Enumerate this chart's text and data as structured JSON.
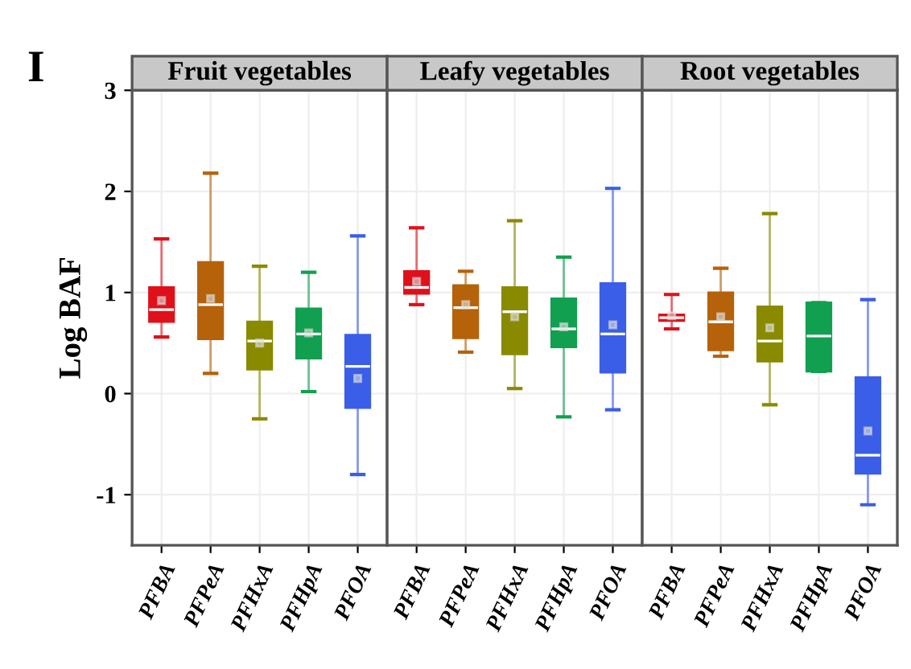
{
  "chart_data": [
    {
      "type": "box",
      "title": "Fruit vegetables",
      "ylabel": "Log BAF",
      "annotations": [
        "I"
      ],
      "categories": [
        "PFBA",
        "PFPeA",
        "PFHxA",
        "PFHpA",
        "PFOA"
      ],
      "colors": [
        "#e0101a",
        "#b5620a",
        "#8a8a00",
        "#10a050",
        "#3a5ee8"
      ],
      "ylim": [
        -1.5,
        3
      ],
      "yticks": [
        -1,
        0,
        1,
        2,
        3
      ],
      "grid": true,
      "boxes": [
        {
          "low": 0.56,
          "q1": 0.71,
          "median": 0.83,
          "q3": 1.05,
          "high": 1.53,
          "mean": 0.92
        },
        {
          "low": 0.2,
          "q1": 0.54,
          "median": 0.88,
          "q3": 1.3,
          "high": 2.18,
          "mean": 0.94
        },
        {
          "low": -0.25,
          "q1": 0.24,
          "median": 0.52,
          "q3": 0.71,
          "high": 1.26,
          "mean": 0.5
        },
        {
          "low": 0.02,
          "q1": 0.35,
          "median": 0.59,
          "q3": 0.84,
          "high": 1.2,
          "mean": 0.6
        },
        {
          "low": -0.8,
          "q1": -0.14,
          "median": 0.27,
          "q3": 0.58,
          "high": 1.56,
          "mean": 0.15
        }
      ]
    },
    {
      "type": "box",
      "title": "Leafy vegetables",
      "categories": [
        "PFBA",
        "PFPeA",
        "PFHxA",
        "PFHpA",
        "PFOA"
      ],
      "colors": [
        "#e0101a",
        "#b5620a",
        "#8a8a00",
        "#10a050",
        "#3a5ee8"
      ],
      "ylim": [
        -1.5,
        3
      ],
      "yticks": [
        -1,
        0,
        1,
        2,
        3
      ],
      "grid": true,
      "tick_labels": "x",
      "boxes": [
        {
          "low": 0.88,
          "q1": 0.99,
          "median": 1.05,
          "q3": 1.21,
          "high": 1.64,
          "mean": 1.11
        },
        {
          "low": 0.41,
          "q1": 0.55,
          "median": 0.85,
          "q3": 1.07,
          "high": 1.21,
          "mean": 0.88
        },
        {
          "low": 0.05,
          "q1": 0.39,
          "median": 0.81,
          "q3": 1.05,
          "high": 1.71,
          "mean": 0.76
        },
        {
          "low": -0.23,
          "q1": 0.46,
          "median": 0.64,
          "q3": 0.94,
          "high": 1.35,
          "mean": 0.66
        },
        {
          "low": -0.16,
          "q1": 0.21,
          "median": 0.59,
          "q3": 1.09,
          "high": 2.03,
          "mean": 0.68
        }
      ]
    },
    {
      "type": "box",
      "title": "Root vegetables",
      "categories": [
        "PFBA",
        "PFPeA",
        "PFHxA",
        "PFHpA",
        "PFOA"
      ],
      "colors": [
        "#e0101a",
        "#b5620a",
        "#8a8a00",
        "#10a050",
        "#3a5ee8"
      ],
      "ylim": [
        -1.5,
        3
      ],
      "yticks": [
        -1,
        0,
        1,
        2,
        3
      ],
      "grid": true,
      "tick_labels": "x",
      "boxes": [
        {
          "low": 0.64,
          "q1": 0.72,
          "median": 0.75,
          "q3": 0.78,
          "high": 0.98,
          "mean": 0.77
        },
        {
          "low": 0.37,
          "q1": 0.43,
          "median": 0.71,
          "q3": 1.0,
          "high": 1.24,
          "mean": 0.76
        },
        {
          "low": -0.11,
          "q1": 0.32,
          "median": 0.52,
          "q3": 0.86,
          "high": 1.78,
          "mean": 0.65
        },
        {
          "low": 0.22,
          "q1": 0.22,
          "median": 0.57,
          "q3": 0.9,
          "high": 0.9
        },
        {
          "low": -1.1,
          "q1": -0.79,
          "median": -0.61,
          "q3": 0.16,
          "high": 0.93,
          "mean": -0.37
        }
      ]
    }
  ]
}
